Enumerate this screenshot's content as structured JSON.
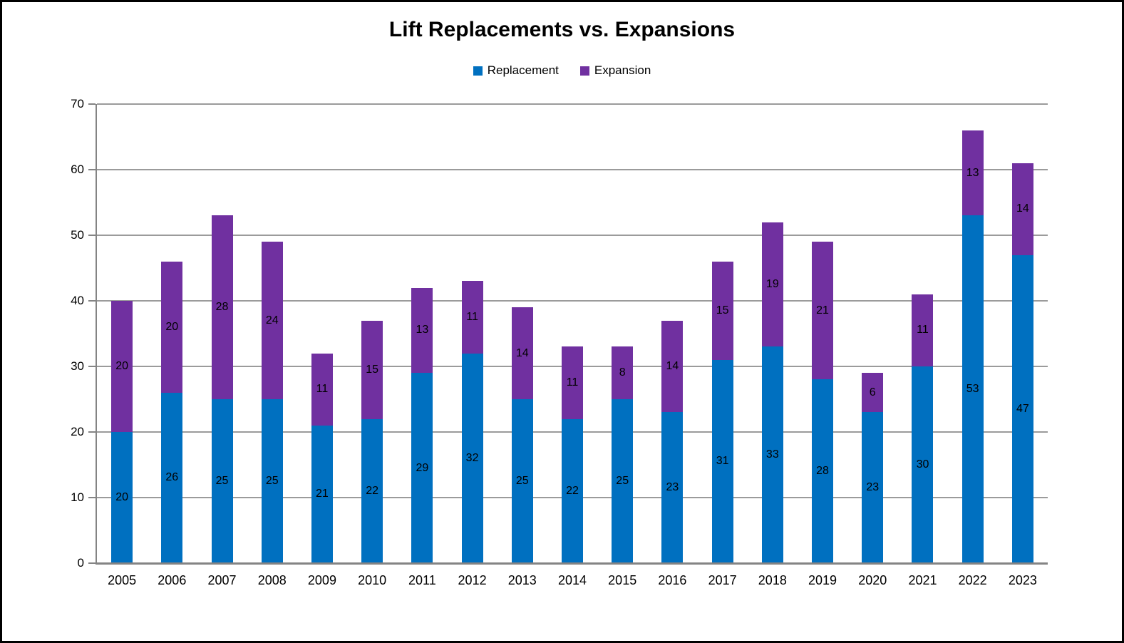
{
  "chart_data": {
    "type": "bar",
    "stacked": true,
    "title": "Lift Replacements vs. Expansions",
    "categories": [
      "2005",
      "2006",
      "2007",
      "2008",
      "2009",
      "2010",
      "2011",
      "2012",
      "2013",
      "2014",
      "2015",
      "2016",
      "2017",
      "2018",
      "2019",
      "2020",
      "2021",
      "2022",
      "2023"
    ],
    "series": [
      {
        "name": "Replacement",
        "color": "#0070C0",
        "values": [
          20,
          26,
          25,
          25,
          21,
          22,
          29,
          32,
          25,
          22,
          25,
          23,
          31,
          33,
          28,
          23,
          30,
          53,
          47
        ]
      },
      {
        "name": "Expansion",
        "color": "#7030A0",
        "values": [
          20,
          20,
          28,
          24,
          11,
          15,
          13,
          11,
          14,
          11,
          8,
          14,
          15,
          19,
          21,
          6,
          11,
          13,
          14
        ]
      }
    ],
    "xlabel": "",
    "ylabel": "",
    "ylim": [
      0,
      70
    ],
    "yticks": [
      0,
      10,
      20,
      30,
      40,
      50,
      60,
      70
    ],
    "grid": true,
    "legend_position": "top",
    "data_labels": "inside-center",
    "colors": {
      "replacement": "#0070C0",
      "expansion": "#7030A0",
      "gridline": "#9b9b9b",
      "axis": "#848484",
      "text": "#000000",
      "page_border": "#000000",
      "background": "#ffffff"
    }
  }
}
